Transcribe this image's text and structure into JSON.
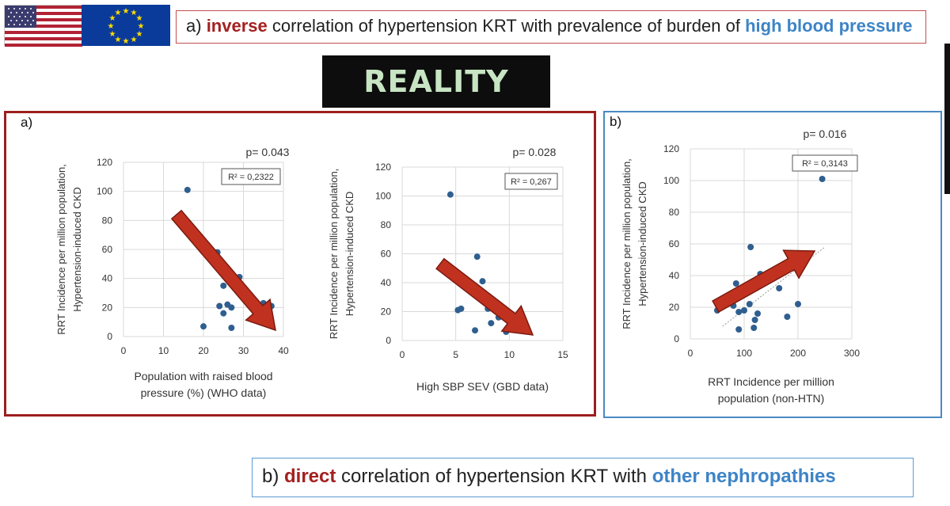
{
  "header": {
    "top_box": {
      "prefix": "a) ",
      "keyword": "inverse",
      "middle": " correlation of hypertension KRT with prevalence of burden of ",
      "highlight": "high blood pressure"
    },
    "reality_label": "REALITY",
    "bottom_box": {
      "prefix": "b) ",
      "keyword": "direct",
      "middle": " correlation of hypertension KRT with ",
      "highlight": "other nephropathies"
    },
    "flags": [
      "us-flag-icon",
      "eu-flag-icon"
    ]
  },
  "panels": {
    "a_label": "a)",
    "b_label": "b)"
  },
  "colors": {
    "panel_a_border": "#9c1f1f",
    "panel_b_border": "#4a89c4",
    "point": "#2f5f8f",
    "arrow": "#c0321f",
    "keyword_red": "#a42020",
    "keyword_blue": "#3d84c6"
  },
  "chart_data": [
    {
      "type": "scatter",
      "p_value": "p= 0.043",
      "r2_label": "R² = 0,2322",
      "ylabel_lines": [
        "RRT Incidence per million population,",
        "Hypertension-induced CKD"
      ],
      "xlabel_lines": [
        "Population with raised blood",
        "pressure (%) (WHO data)"
      ],
      "xlim": [
        0,
        40
      ],
      "ylim": [
        0,
        120
      ],
      "xticks": [
        0,
        10,
        20,
        30,
        40
      ],
      "yticks": [
        0,
        20,
        40,
        60,
        80,
        100,
        120
      ],
      "grid": true,
      "trend_arrow": "down-right",
      "points": [
        {
          "x": 16,
          "y": 101
        },
        {
          "x": 23.5,
          "y": 58
        },
        {
          "x": 29,
          "y": 41
        },
        {
          "x": 25,
          "y": 35
        },
        {
          "x": 24,
          "y": 21
        },
        {
          "x": 26,
          "y": 22
        },
        {
          "x": 27,
          "y": 20
        },
        {
          "x": 25,
          "y": 16
        },
        {
          "x": 20,
          "y": 7
        },
        {
          "x": 27,
          "y": 6
        },
        {
          "x": 35,
          "y": 23
        },
        {
          "x": 37,
          "y": 21
        },
        {
          "x": 32,
          "y": 12
        }
      ]
    },
    {
      "type": "scatter",
      "p_value": "p= 0.028",
      "r2_label": "R² = 0,267",
      "ylabel_lines": [
        "RRT Incidence per million population,",
        "Hypertension-induced CKD"
      ],
      "xlabel_lines": [
        "High SBP SEV  (GBD data)"
      ],
      "xlim": [
        0,
        15
      ],
      "ylim": [
        0,
        120
      ],
      "xticks": [
        0,
        5,
        10,
        15
      ],
      "yticks": [
        0,
        20,
        40,
        60,
        80,
        100,
        120
      ],
      "grid": true,
      "trend_arrow": "down-right",
      "points": [
        {
          "x": 4.5,
          "y": 101
        },
        {
          "x": 7,
          "y": 58
        },
        {
          "x": 7.5,
          "y": 41
        },
        {
          "x": 5.2,
          "y": 21
        },
        {
          "x": 5.5,
          "y": 22
        },
        {
          "x": 8,
          "y": 22
        },
        {
          "x": 8.3,
          "y": 12
        },
        {
          "x": 6.8,
          "y": 7
        },
        {
          "x": 9.7,
          "y": 6
        },
        {
          "x": 9,
          "y": 16
        },
        {
          "x": 10.5,
          "y": 11
        }
      ]
    },
    {
      "type": "scatter",
      "p_value": "p= 0.016",
      "r2_label": "R² = 0,3143",
      "ylabel_lines": [
        "RRT Incidence per million population,",
        "Hypertension-induced CKD"
      ],
      "xlabel_lines": [
        "RRT Incidence per million",
        "population (non-HTN)"
      ],
      "xlim": [
        0,
        300
      ],
      "ylim": [
        0,
        120
      ],
      "xticks": [
        0,
        100,
        200,
        300
      ],
      "yticks": [
        0,
        20,
        40,
        60,
        80,
        100,
        120
      ],
      "grid": true,
      "trend_arrow": "up-right",
      "points": [
        {
          "x": 245,
          "y": 101
        },
        {
          "x": 112,
          "y": 58
        },
        {
          "x": 130,
          "y": 41
        },
        {
          "x": 85,
          "y": 35
        },
        {
          "x": 75,
          "y": 23
        },
        {
          "x": 80,
          "y": 21
        },
        {
          "x": 50,
          "y": 18
        },
        {
          "x": 90,
          "y": 17
        },
        {
          "x": 100,
          "y": 18
        },
        {
          "x": 125,
          "y": 16
        },
        {
          "x": 120,
          "y": 12
        },
        {
          "x": 90,
          "y": 6
        },
        {
          "x": 118,
          "y": 7
        },
        {
          "x": 180,
          "y": 14
        },
        {
          "x": 200,
          "y": 22
        },
        {
          "x": 165,
          "y": 32
        },
        {
          "x": 110,
          "y": 22
        }
      ]
    }
  ]
}
